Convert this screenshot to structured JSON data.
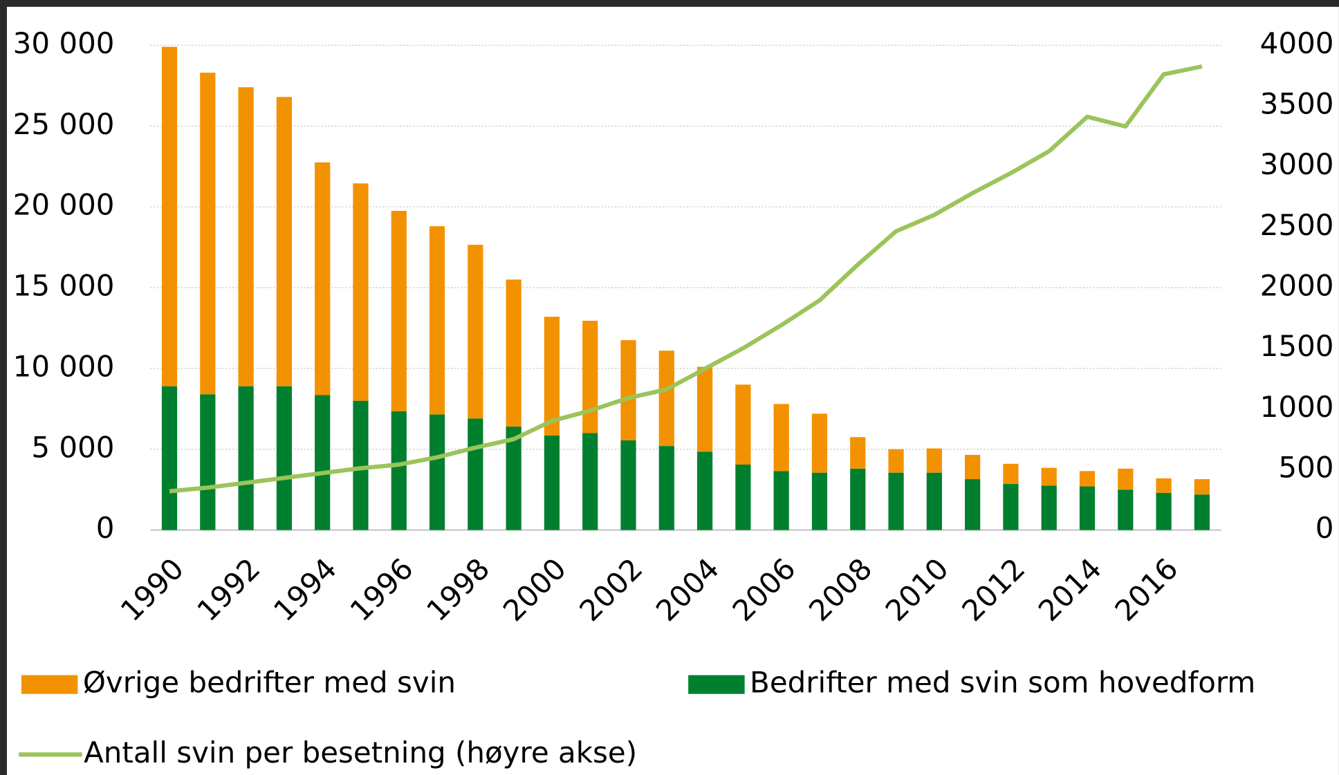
{
  "chart_data": {
    "type": "bar",
    "stacked": true,
    "categories": [
      "1990",
      null,
      "1992",
      null,
      "1994",
      null,
      "1996",
      null,
      "1998",
      null,
      "2000",
      null,
      "2002",
      null,
      "2004",
      null,
      "2006",
      null,
      "2008",
      null,
      "2010",
      null,
      "2012",
      null,
      "2014",
      null,
      "2016",
      null
    ],
    "series": [
      {
        "name": "Bedrifter med svin som hovedform",
        "color": "#00802f",
        "type": "bar",
        "values": [
          8900,
          8400,
          8900,
          8900,
          8350,
          8000,
          7350,
          7150,
          6900,
          6400,
          5850,
          6000,
          5550,
          5200,
          4850,
          4050,
          3650,
          3550,
          3800,
          3550,
          3550,
          3150,
          2850,
          2750,
          2700,
          2500,
          2300,
          2200
        ]
      },
      {
        "name": "Øvrige bedrifter med svin",
        "color": "#f39200",
        "type": "bar",
        "values": [
          21000,
          19900,
          18500,
          17900,
          14400,
          13450,
          12400,
          11650,
          10750,
          9100,
          7350,
          6950,
          6200,
          5900,
          5250,
          4950,
          4150,
          3650,
          1950,
          1450,
          1500,
          1500,
          1250,
          1100,
          950,
          1300,
          900,
          950
        ]
      },
      {
        "name": "Antall svin per besetning (høyre akse)",
        "color": "#9bc45a",
        "type": "line",
        "axis": "y2",
        "values": [
          320,
          350,
          390,
          430,
          470,
          510,
          540,
          600,
          680,
          750,
          900,
          985,
          1090,
          1160,
          1330,
          1500,
          1690,
          1895,
          2190,
          2465,
          2600,
          2780,
          2945,
          3125,
          3410,
          3330,
          3760,
          3825
        ]
      }
    ],
    "ylim": [
      0,
      30000
    ],
    "yticks": [
      0,
      {
        "value": 5000,
        "label": "5 000"
      },
      {
        "value": 10000,
        "label": "10 000"
      },
      {
        "value": 15000,
        "label": "15 000"
      },
      {
        "value": 20000,
        "label": "20 000"
      },
      {
        "value": 25000,
        "label": "25 000"
      },
      {
        "value": 30000,
        "label": "30 000"
      }
    ],
    "y2lim": [
      0,
      4000
    ],
    "y2ticks": [
      0,
      500,
      1000,
      1500,
      2000,
      2500,
      3000,
      3500,
      4000
    ],
    "grid": true
  }
}
